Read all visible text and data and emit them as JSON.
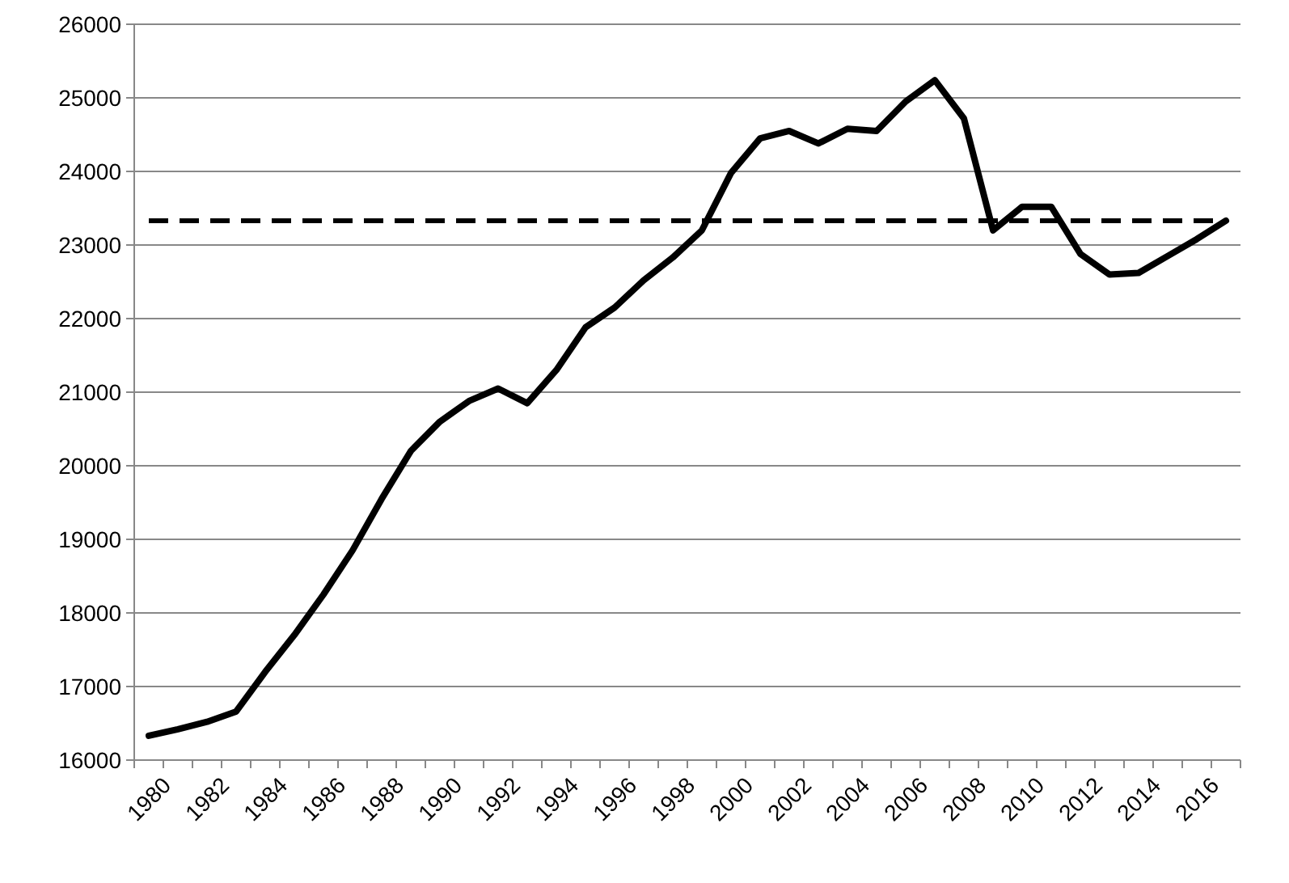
{
  "chart_data": {
    "type": "line",
    "categories": [
      "1980",
      null,
      "1982",
      null,
      "1984",
      null,
      "1986",
      null,
      "1988",
      null,
      "1990",
      null,
      "1992",
      null,
      "1994",
      null,
      "1996",
      null,
      "1998",
      null,
      "2000",
      null,
      "2002",
      null,
      "2004",
      null,
      "2006",
      null,
      "2008",
      null,
      "2010",
      null,
      "2012",
      null,
      "2014",
      null,
      "2016",
      null
    ],
    "series": [
      {
        "color": "#000000",
        "values": [
          16330,
          16420,
          16520,
          16660,
          17200,
          17700,
          18250,
          18850,
          19550,
          20200,
          20600,
          20880,
          21050,
          20850,
          21300,
          21880,
          22150,
          22520,
          22830,
          23200,
          23980,
          24450,
          24550,
          24380,
          24580,
          24550,
          24950,
          25240,
          24720,
          23200,
          23520,
          23520,
          22880,
          22600,
          22620,
          22850,
          23080,
          23330
        ]
      }
    ],
    "ylim": [
      16000,
      26000
    ],
    "yticks": [
      16000,
      17000,
      18000,
      19000,
      20000,
      21000,
      22000,
      23000,
      24000,
      25000,
      26000
    ],
    "grid": "y",
    "marker": "none",
    "line_style": "solid",
    "ref_lines": [
      {
        "axis": "y",
        "value": 23330,
        "color": "#000000",
        "line_style": "dashed"
      }
    ]
  }
}
